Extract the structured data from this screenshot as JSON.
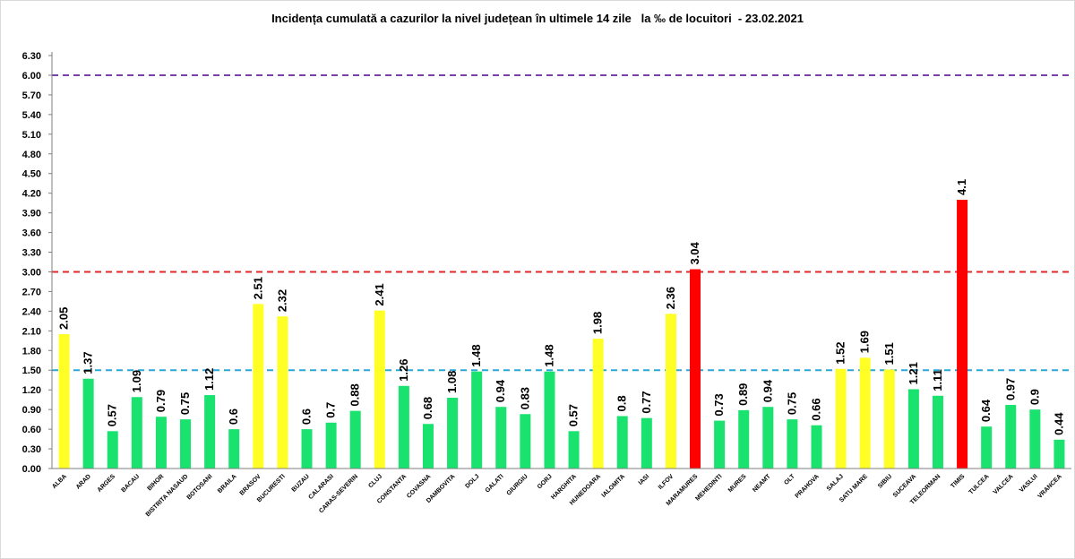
{
  "chart_data": {
    "type": "bar",
    "title": "Incidența cumulată a cazurilor la nivel județean în ultimele 14 zile   la ‰ de locuitori  - 23.02.2021",
    "xlabel": "",
    "ylabel": "",
    "ylim": [
      0,
      6.3
    ],
    "yticks": [
      "0.00",
      "0.30",
      "0.60",
      "0.90",
      "1.20",
      "1.50",
      "1.80",
      "2.10",
      "2.40",
      "2.70",
      "3.00",
      "3.30",
      "3.60",
      "3.90",
      "4.20",
      "4.50",
      "4.80",
      "5.10",
      "5.40",
      "5.70",
      "6.00",
      "6.30"
    ],
    "grid": false,
    "legend": "none",
    "categories": [
      "ALBA",
      "ARAD",
      "ARGES",
      "BACAU",
      "BIHOR",
      "BISTRITA NASAUD",
      "BOTOSANI",
      "BRAILA",
      "BRASOV",
      "BUCURESTI",
      "BUZAU",
      "CALARASI",
      "CARAS-SEVERIN",
      "CLUJ",
      "CONSTANTA",
      "COVASNA",
      "DAMBOVITA",
      "DOLJ",
      "GALATI",
      "GIURGIU",
      "GORJ",
      "HARGHITA",
      "HUNEDOARA",
      "IALOMITA",
      "IASI",
      "ILFOV",
      "MARAMURES",
      "MEHEDINTI",
      "MURES",
      "NEAMT",
      "OLT",
      "PRAHOVA",
      "SALAJ",
      "SATU MARE",
      "SIBIU",
      "SUCEAVA",
      "TELEORMAN",
      "TIMIS",
      "TULCEA",
      "VALCEA",
      "VASLUI",
      "VRANCEA"
    ],
    "values": [
      2.05,
      1.37,
      0.57,
      1.09,
      0.79,
      0.75,
      1.12,
      0.6,
      2.51,
      2.32,
      0.6,
      0.7,
      0.88,
      2.41,
      1.26,
      0.68,
      1.08,
      1.48,
      0.94,
      0.83,
      1.48,
      0.57,
      1.98,
      0.8,
      0.77,
      2.36,
      3.04,
      0.73,
      0.89,
      0.94,
      0.75,
      0.66,
      1.52,
      1.69,
      1.51,
      1.21,
      1.11,
      4.1,
      0.64,
      0.97,
      0.9,
      0.44
    ],
    "labels": [
      "2.05",
      "1.37",
      "0.57",
      "1.09",
      "0.79",
      "0.75",
      "1.12",
      "0.6",
      "2.51",
      "2.32",
      "0.6",
      "0.7",
      "0.88",
      "2.41",
      "1.26",
      "0.68",
      "1.08",
      "1.48",
      "0.94",
      "0.83",
      "1.48",
      "0.57",
      "1.98",
      "0.8",
      "0.77",
      "2.36",
      "3.04",
      "0.73",
      "0.89",
      "0.94",
      "0.75",
      "0.66",
      "1.52",
      "1.69",
      "1.51",
      "1.21",
      "1.11",
      "4.1",
      "0.64",
      "0.97",
      "0.9",
      "0.44"
    ],
    "thresholds": [
      {
        "value": 1.5,
        "color": "#28a7d8",
        "style": "dashed"
      },
      {
        "value": 3.0,
        "color": "#e3272a",
        "style": "dashed"
      },
      {
        "value": 6.0,
        "color": "#7a3fa8",
        "style": "dashed"
      }
    ],
    "color_rules": {
      "below_1_5": "#19e36e",
      "from_1_5_to_3": "#ffff26",
      "above_3": "#ff0000"
    }
  }
}
